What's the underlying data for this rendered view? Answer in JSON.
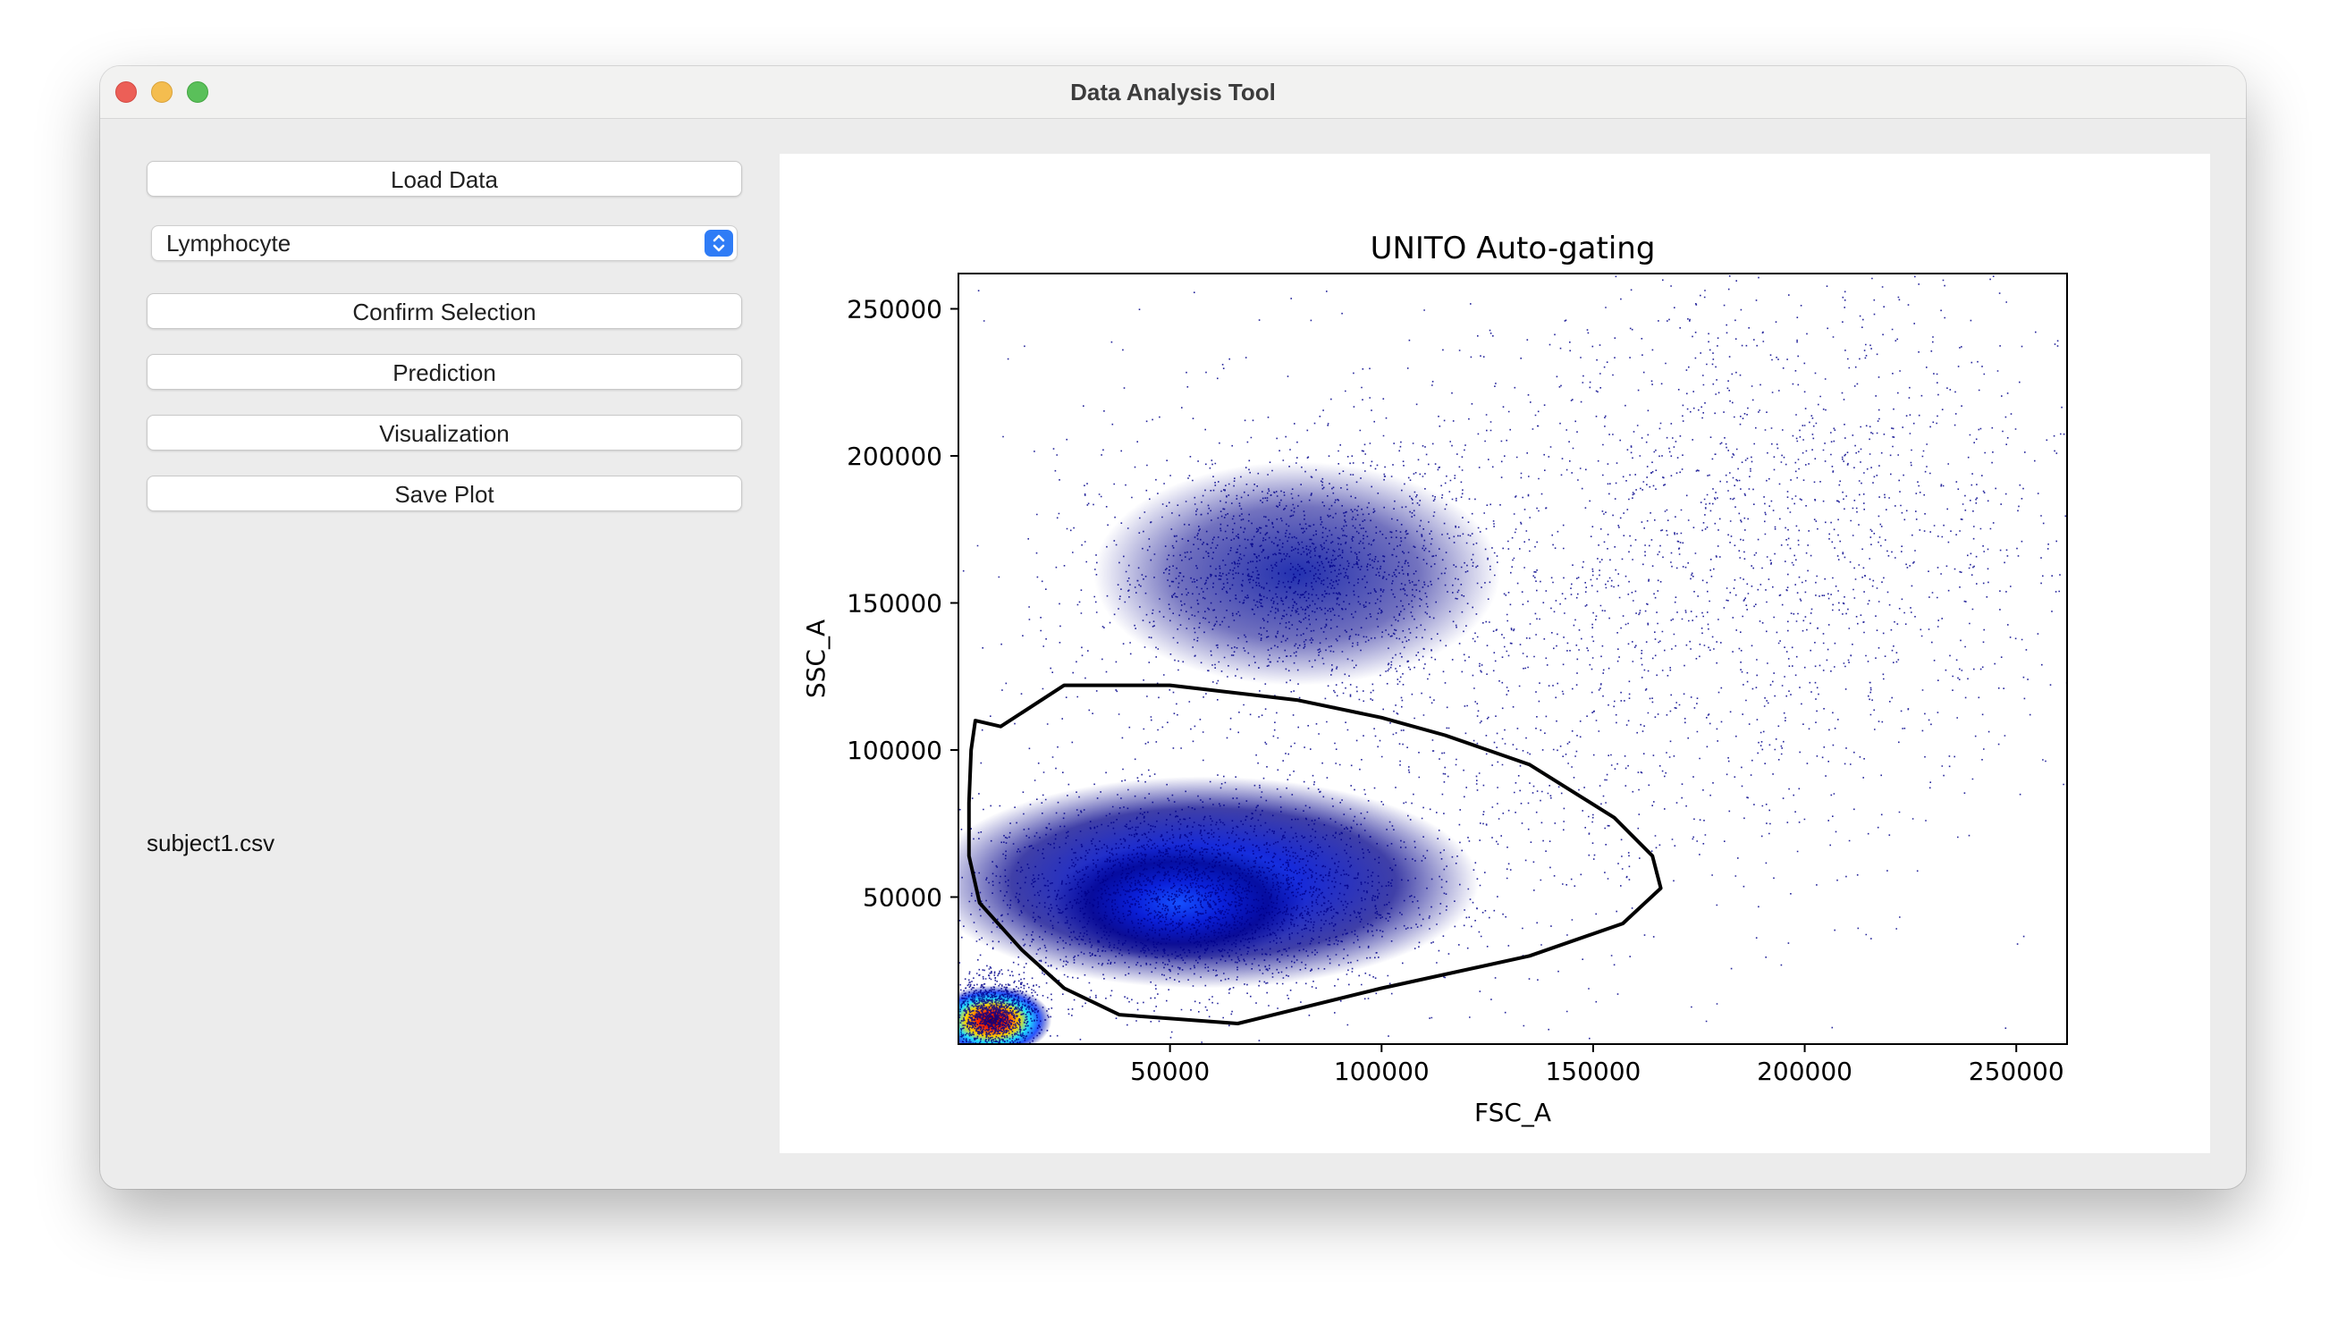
{
  "window": {
    "title": "Data Analysis Tool"
  },
  "sidebar": {
    "load_label": "Load Data",
    "population_select": {
      "selected": "Lymphocyte"
    },
    "confirm_label": "Confirm Selection",
    "prediction_label": "Prediction",
    "visualization_label": "Visualization",
    "save_label": "Save Plot",
    "file_name": "subject1.csv"
  },
  "colors": {
    "points": "#00008b",
    "dense_core": "#0a2cff",
    "gate": "#000000",
    "hotspot": "#c8102e"
  },
  "chart_data": {
    "type": "scatter",
    "title": "UNITO Auto-gating",
    "xlabel": "FSC_A",
    "ylabel": "SSC_A",
    "xlim": [
      0,
      262000
    ],
    "ylim": [
      0,
      262000
    ],
    "xticks": [
      50000,
      100000,
      150000,
      200000,
      250000
    ],
    "yticks": [
      50000,
      100000,
      150000,
      200000,
      250000
    ],
    "xtick_labels": [
      "50000",
      "100000",
      "150000",
      "200000",
      "250000"
    ],
    "ytick_labels": [
      "50000",
      "100000",
      "150000",
      "200000",
      "250000"
    ],
    "density_clusters": [
      {
        "center": [
          55000,
          50000
        ],
        "spread": [
          25000,
          16000
        ],
        "weight": 0.34
      },
      {
        "center": [
          80000,
          162000
        ],
        "spread": [
          22000,
          18000
        ],
        "weight": 0.16
      },
      {
        "center": [
          8000,
          10000
        ],
        "spread": [
          5000,
          6000
        ],
        "weight": 0.16
      },
      {
        "center": [
          120000,
          130000
        ],
        "spread": [
          55000,
          55000
        ],
        "weight": 0.2
      },
      {
        "center": [
          200000,
          180000
        ],
        "spread": [
          35000,
          45000
        ],
        "weight": 0.14
      }
    ],
    "gate_polygon": [
      [
        3000,
        100000
      ],
      [
        4000,
        110000
      ],
      [
        10000,
        108000
      ],
      [
        25000,
        122000
      ],
      [
        50000,
        122000
      ],
      [
        80000,
        117000
      ],
      [
        100000,
        111000
      ],
      [
        115000,
        105000
      ],
      [
        135000,
        95000
      ],
      [
        155000,
        77000
      ],
      [
        164000,
        64000
      ],
      [
        166000,
        53000
      ],
      [
        157000,
        41000
      ],
      [
        135000,
        30000
      ],
      [
        100000,
        19000
      ],
      [
        66000,
        7000
      ],
      [
        38000,
        10000
      ],
      [
        25000,
        19000
      ],
      [
        15000,
        32000
      ],
      [
        5000,
        48000
      ],
      [
        2500,
        64000
      ],
      [
        2500,
        82000
      ]
    ]
  }
}
